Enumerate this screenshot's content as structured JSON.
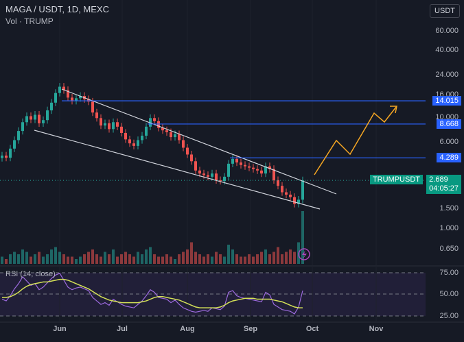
{
  "header": {
    "title": "MAGA / USDT, 1D, MEXC",
    "subtitle": "Vol · TRUMP",
    "currency_button": "USDT"
  },
  "price_axis": {
    "ticks": [
      "60.000",
      "40.000",
      "24.000",
      "16.000",
      "10.000",
      "6.000",
      "1.500",
      "1.000",
      "0.650"
    ],
    "tick_values": [
      60,
      40,
      24,
      16,
      10,
      6,
      1.5,
      1.0,
      0.65
    ]
  },
  "levels": [
    {
      "label": "14.015",
      "value": 14.015
    },
    {
      "label": "8.668",
      "value": 8.668
    },
    {
      "label": "4.289",
      "value": 4.289
    }
  ],
  "current": {
    "symbol": "TRUMPUSDT",
    "price": "2.689",
    "countdown": "04:05:27",
    "value": 2.689
  },
  "rsi": {
    "label": "RSI (14, close)",
    "ticks": [
      "75.00",
      "50.00",
      "25.00"
    ]
  },
  "x_axis": {
    "ticks": [
      "Jun",
      "Jul",
      "Aug",
      "Sep",
      "Oct",
      "Nov"
    ]
  },
  "colors": {
    "up": "#26a69a",
    "down": "#ef5350",
    "level": "#2962ff",
    "arrow": "#f5a623",
    "rsi": "#9c6ade",
    "rsi_ma": "#d4e157"
  },
  "chart_data": {
    "type": "candlestick",
    "title": "MAGA / USDT, 1D, MEXC",
    "yscale": "log",
    "ylim": [
      0.55,
      75
    ],
    "closes": [
      4.5,
      4.3,
      5.2,
      6.2,
      7.5,
      9.0,
      10.2,
      9.5,
      10.5,
      8.8,
      9.4,
      11.5,
      13.5,
      16.5,
      18.8,
      17.5,
      15,
      14,
      14.8,
      15.5,
      14.5,
      13.8,
      11,
      9.8,
      8.4,
      8.8,
      7.8,
      9,
      8.2,
      7.2,
      6.3,
      5.8,
      5.5,
      6.2,
      6.8,
      8.2,
      9.8,
      9.2,
      8,
      7.6,
      7.3,
      6.6,
      7,
      6.2,
      5.3,
      4.6,
      4.0,
      3.3,
      3.1,
      3.0,
      2.9,
      3.1,
      2.7,
      2.65,
      2.9,
      3.8,
      4.2,
      3.9,
      3.7,
      3.6,
      3.5,
      3.4,
      3.3,
      3.1,
      3.6,
      3.4,
      2.7,
      2.4,
      2.1,
      2.0,
      1.9,
      1.65,
      1.8,
      2.689
    ],
    "volumes": [
      3,
      2,
      4,
      5,
      4,
      6,
      5,
      3,
      4,
      5,
      3,
      4,
      6,
      7,
      5,
      4,
      3,
      3,
      2,
      3,
      4,
      5,
      6,
      4,
      3,
      5,
      4,
      6,
      3,
      4,
      5,
      4,
      3,
      5,
      4,
      6,
      7,
      4,
      3,
      3,
      4,
      3,
      2,
      4,
      5,
      6,
      9,
      5,
      4,
      3,
      4,
      3,
      5,
      4,
      3,
      8,
      6,
      4,
      3,
      3,
      4,
      3,
      4,
      5,
      6,
      4,
      5,
      7,
      4,
      5,
      6,
      5,
      9,
      22
    ],
    "rsi_values": [
      44,
      42,
      48,
      56,
      62,
      70,
      65,
      60,
      62,
      55,
      58,
      63,
      68,
      72,
      74,
      66,
      58,
      55,
      57,
      58,
      56,
      54,
      46,
      42,
      38,
      40,
      37,
      44,
      41,
      38,
      36,
      35,
      34,
      38,
      42,
      48,
      55,
      52,
      46,
      45,
      44,
      40,
      43,
      38,
      34,
      32,
      30,
      29,
      30,
      31,
      30,
      34,
      33,
      32,
      36,
      52,
      54,
      48,
      46,
      45,
      44,
      43,
      42,
      41,
      52,
      49,
      38,
      35,
      32,
      31,
      30,
      27,
      35,
      54
    ],
    "rsi_ma": [
      46,
      46,
      47,
      49,
      52,
      56,
      59,
      61,
      62,
      63,
      64,
      64,
      65,
      66,
      67,
      67,
      66,
      64,
      62,
      60,
      58,
      56,
      53,
      50,
      47,
      45,
      43,
      42,
      41,
      40,
      40,
      40,
      40,
      40,
      41,
      42,
      44,
      46,
      47,
      47,
      46,
      45,
      44,
      43,
      41,
      39,
      37,
      35,
      34,
      34,
      34,
      34,
      34,
      35,
      37,
      40,
      42,
      43,
      44,
      45,
      45,
      45,
      44,
      44,
      44,
      44,
      43,
      42,
      41,
      39,
      37,
      35,
      34,
      34
    ]
  }
}
